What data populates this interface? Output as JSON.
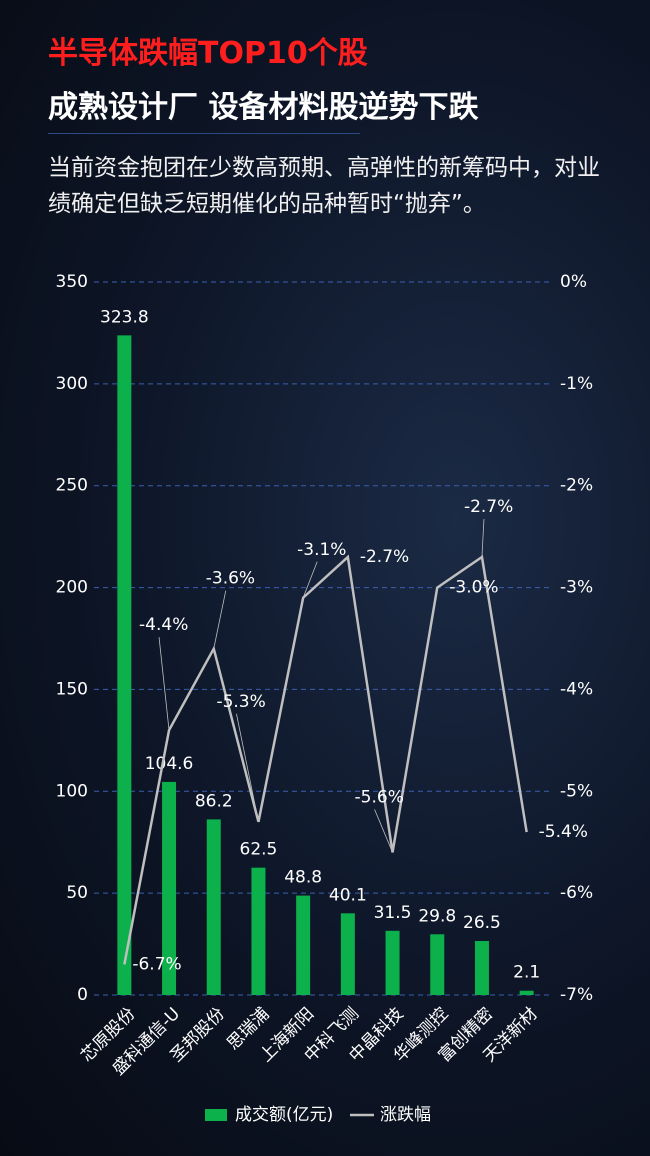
{
  "chart_data": {
    "type": "bar-line",
    "title": "半导体跌幅TOP10个股",
    "subtitle": "成熟设计厂  设备材料股逆势下跌",
    "description": "当前资金抱团在少数高预期、高弹性的新筹码中，对业绩确定但缺乏短期催化的品种暂时“抛弃”。",
    "categories": [
      "芯原股份",
      "盛科通信-U",
      "圣邦股份",
      "思瑞浦",
      "上海新阳",
      "中科飞测",
      "中晶科技",
      "华峰测控",
      "富创精密",
      "天洋新材"
    ],
    "series": [
      {
        "name": "成交额(亿元)",
        "type": "bar",
        "color": "#0db14b",
        "values": [
          323.8,
          104.6,
          86.2,
          62.5,
          48.8,
          40.1,
          31.5,
          29.8,
          26.5,
          2.1
        ]
      },
      {
        "name": "涨跌幅",
        "type": "line",
        "axis": "y2",
        "color": "#bfbfbf",
        "values": [
          -6.7,
          -4.4,
          -3.6,
          -5.3,
          -3.1,
          -2.7,
          -5.6,
          -3.0,
          -2.7,
          -5.4
        ],
        "value_labels": [
          "-6.7%",
          "-4.4%",
          "-3.6%",
          "-5.3%",
          "-3.1%",
          "-2.7%",
          "-5.6%",
          "-3.0%",
          "-2.7%",
          "-5.4%"
        ]
      }
    ],
    "ylim": [
      0,
      350
    ],
    "yticks": [
      0,
      50,
      100,
      150,
      200,
      250,
      300,
      350
    ],
    "y2lim": [
      -7,
      0
    ],
    "y2ticks": [
      {
        "value": 0,
        "label": "0%"
      },
      {
        "value": -1,
        "label": "-1%"
      },
      {
        "value": -2,
        "label": "-2%"
      },
      {
        "value": -3,
        "label": "-3%"
      },
      {
        "value": -4,
        "label": "-4%"
      },
      {
        "value": -5,
        "label": "-5%"
      },
      {
        "value": -6,
        "label": "-6%"
      },
      {
        "value": -7,
        "label": "-7%"
      }
    ],
    "grid": true
  }
}
